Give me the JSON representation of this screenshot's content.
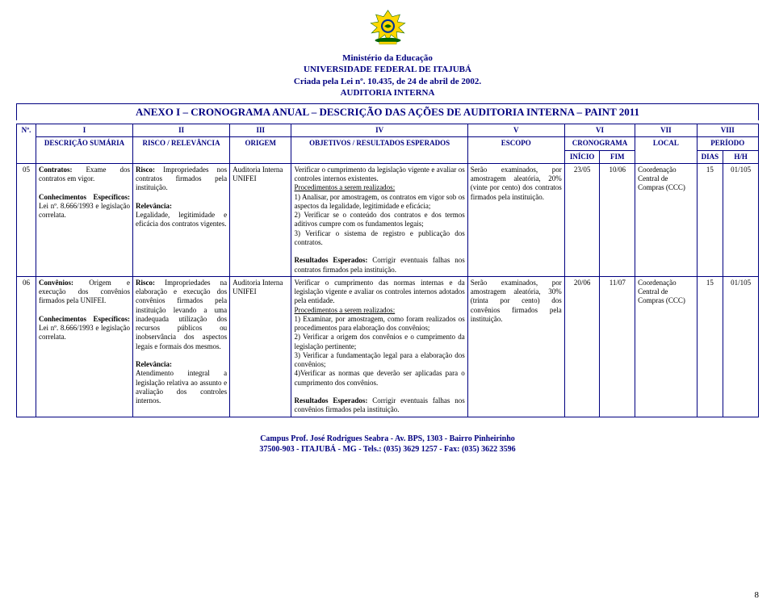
{
  "header": {
    "ministry": "Ministério da Educação",
    "university": "UNIVERSIDADE FEDERAL DE ITAJUBÁ",
    "law": "Criada pela Lei nº. 10.435, de 24 de abril de 2002.",
    "dept": "AUDITORIA INTERNA"
  },
  "anexo_title": "ANEXO I – CRONOGRAMA ANUAL – DESCRIÇÃO DAS AÇÕES DE AUDITORIA INTERNA – PAINT 2011",
  "columns": {
    "n": "Nº.",
    "i": "I",
    "ii": "II",
    "iii": "III",
    "iv": "IV",
    "v": "V",
    "vi": "VI",
    "vii": "VII",
    "viii": "VIII",
    "descricao": "DESCRIÇÃO SUMÁRIA",
    "risco": "RISCO / RELEVÂNCIA",
    "origem": "ORIGEM",
    "objetivos": "OBJETIVOS / RESULTADOS ESPERADOS",
    "escopo": "ESCOPO",
    "cronograma": "CRONOGRAMA",
    "inicio": "INÍCIO",
    "fim": "FIM",
    "local": "LOCAL",
    "periodo": "PERÍODO",
    "dias": "DIAS",
    "hh": "H/H"
  },
  "rows": [
    {
      "n": "05",
      "desc_title": "Contratos:",
      "desc_body": " Exame dos contratos em vigor.",
      "desc_sub_label": "Conhecimentos Específicos:",
      "desc_sub_body": " Lei nº. 8.666/1993 e legislação correlata.",
      "risco_label": "Risco:",
      "risco_body": " Impropriedades nos contratos firmados pela instituição.",
      "relev_label": "Relevância:",
      "relev_body": " Legalidade, legitimidade e eficácia dos contratos vigentes.",
      "origem": "Auditoria Interna UNIFEI",
      "obj_intro": "Verificar o cumprimento da legislação vigente e avaliar os controles internos existentes.",
      "obj_proc_label": "Procedimentos a serem realizados:",
      "obj_proc_body": "1) Analisar, por amostragem, os contratos em vigor sob os aspectos da legalidade, legitimidade e eficácia;\n2) Verificar se o conteúdo dos contratos e dos termos aditivos cumpre com os fundamentos legais;\n3) Verificar o sistema de registro e publicação dos contratos.",
      "obj_res_label": "Resultados Esperados:",
      "obj_res_body": " Corrigir eventuais falhas nos contratos firmados pela instituição.",
      "escopo": "Serão examinados, por amostragem aleatória, 20% (vinte por cento) dos contratos firmados pela instituição.",
      "inicio": "23/05",
      "fim": "10/06",
      "local": "Coordenação Central de Compras (CCC)",
      "dias": "15",
      "hh": "01/105"
    },
    {
      "n": "06",
      "desc_title": "Convênios:",
      "desc_body": " Origem e execução dos convênios firmados pela UNIFEI.",
      "desc_sub_label": "Conhecimentos Específicos:",
      "desc_sub_body": " Lei nº. 8.666/1993 e legislação correlata.",
      "risco_label": "Risco:",
      "risco_body": " Impropriedades na elaboração e execução dos convênios firmados pela instituição levando a uma inadequada utilização dos recursos públicos ou inobservância dos aspectos legais e formais dos mesmos.",
      "relev_label": "Relevância:",
      "relev_body": " Atendimento integral a legislação relativa ao assunto e avaliação dos controles internos.",
      "origem": "Auditoria Interna UNIFEI",
      "obj_intro": "Verificar o cumprimento das normas internas e da legislação vigente e avaliar os controles internos adotados pela entidade.",
      "obj_proc_label": "Procedimentos a serem realizados:",
      "obj_proc_body": "1) Examinar, por amostragem, como foram realizados os procedimentos para elaboração dos convênios;\n2) Verificar a origem dos convênios e o cumprimento da legislação pertinente;\n3) Verificar a fundamentação legal para a elaboração dos convênios;\n4)Verificar as normas que deverão ser aplicadas para o cumprimento dos convênios.",
      "obj_res_label": "Resultados Esperados:",
      "obj_res_body": " Corrigir eventuais falhas nos convênios firmados pela instituição.",
      "escopo": "Serão examinados, por amostragem aleatória, 30% (trinta por cento) dos convênios firmados pela instituição.",
      "inicio": "20/06",
      "fim": "11/07",
      "local": "Coordenação Central de Compras (CCC)",
      "dias": "15",
      "hh": "01/105"
    }
  ],
  "footer": {
    "line1": "Campus Prof. José Rodrigues Seabra - Av. BPS, 1303 - Bairro Pinheirinho",
    "line2": "37500-903 - ITAJUBÁ - MG - Tels.: (035) 3629 1257 - Fax: (035) 3622 3596"
  },
  "page_number": "8",
  "styling": {
    "header_color": "#000080",
    "border_color": "#000080",
    "body_font_size": 9,
    "header_font_size": 11,
    "anexo_font_size": 13
  }
}
